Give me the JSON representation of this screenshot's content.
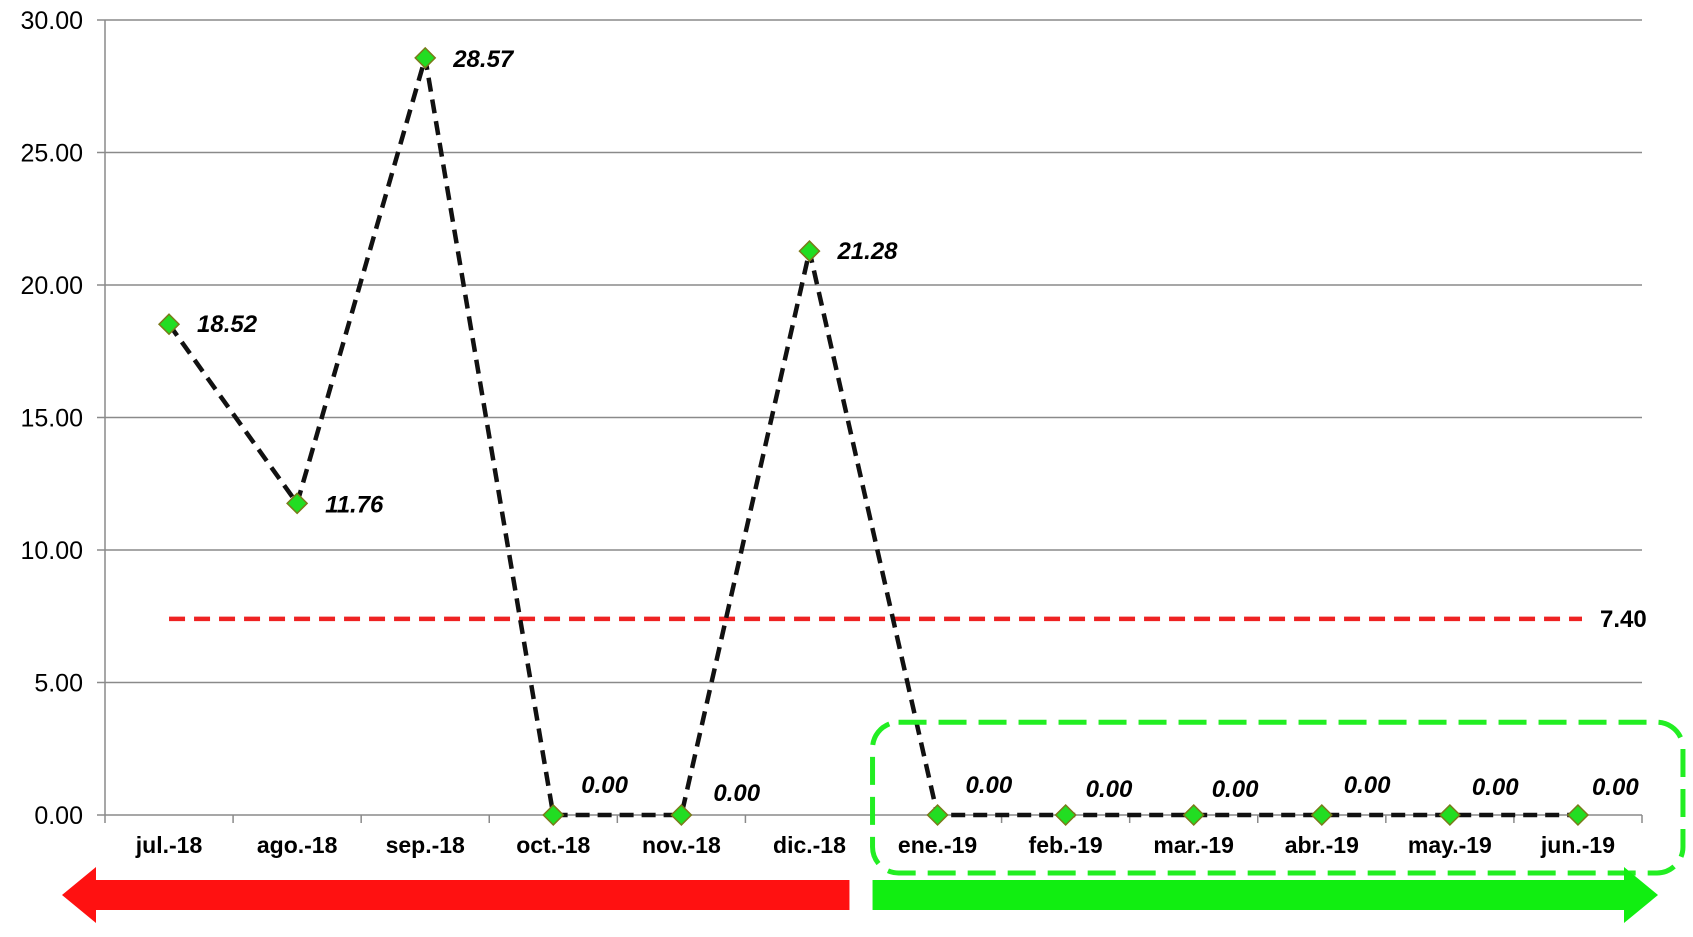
{
  "chart_data": {
    "type": "line",
    "categories": [
      "jul.-18",
      "ago.-18",
      "sep.-18",
      "oct.-18",
      "nov.-18",
      "dic.-18",
      "ene.-19",
      "feb.-19",
      "mar.-19",
      "abr.-19",
      "may.-19",
      "jun.-19"
    ],
    "series": [
      {
        "values": [
          18.52,
          11.76,
          28.57,
          0.0,
          0.0,
          21.28,
          0.0,
          0.0,
          0.0,
          0.0,
          0.0,
          0.0
        ],
        "labels": [
          "18.52",
          "11.76",
          "28.57",
          "0.00",
          "0.00",
          "21.28",
          "0.00",
          "0.00",
          "0.00",
          "0.00",
          "0.00",
          "0.00"
        ],
        "line_color": "#111111",
        "line_style": "dashed",
        "marker": "diamond",
        "marker_color": "#22dd22"
      }
    ],
    "reference_line": {
      "value": 7.4,
      "label": "7.40",
      "color": "#ee2222",
      "line_style": "dashed"
    },
    "yticks": [
      "0.00",
      "5.00",
      "10.00",
      "15.00",
      "20.00",
      "25.00",
      "30.00"
    ],
    "ylim": [
      0,
      30
    ],
    "grid": true,
    "title": "",
    "xlabel": "",
    "ylabel": "",
    "highlight": {
      "from": "ene.-19",
      "to": "jun.-19",
      "color": "#22ee22",
      "style": "dashed-rounded-box"
    },
    "arrows": [
      {
        "direction": "left",
        "color": "#ff1111",
        "span": [
          "jul.-18",
          "dic.-18"
        ]
      },
      {
        "direction": "right",
        "color": "#11ee11",
        "span": [
          "ene.-19",
          "jun.-19"
        ]
      }
    ]
  }
}
